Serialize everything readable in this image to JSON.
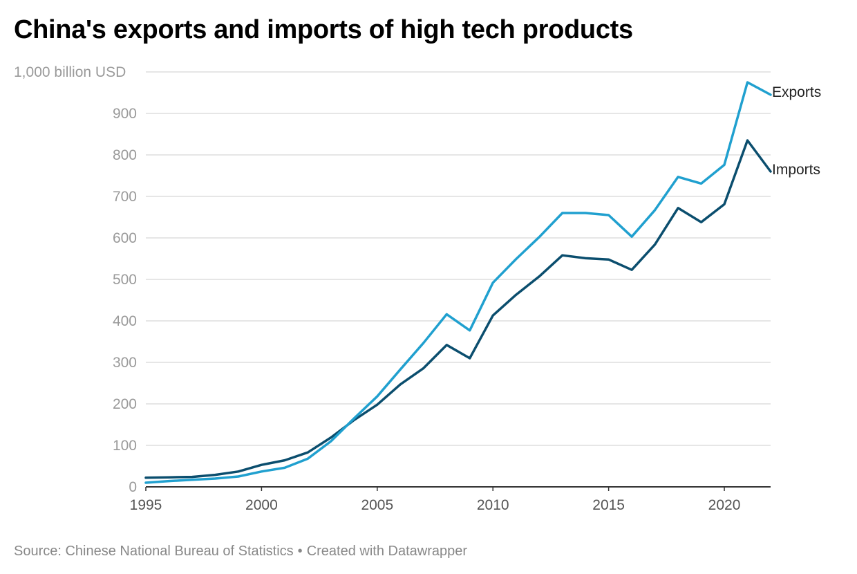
{
  "title": "China's exports and imports of high tech products",
  "footer": {
    "source": "Source: Chinese National Bureau of Statistics",
    "separator": "•",
    "credit": "Created with Datawrapper"
  },
  "chart_data": {
    "type": "line",
    "title": "China's exports and imports of high tech products",
    "ylabel": "1,000 billion USD",
    "ylim": [
      0,
      1000
    ],
    "xlim": [
      1995,
      2022
    ],
    "yticks": [
      {
        "value": 0,
        "label": "0"
      },
      {
        "value": 100,
        "label": "100"
      },
      {
        "value": 200,
        "label": "200"
      },
      {
        "value": 300,
        "label": "300"
      },
      {
        "value": 400,
        "label": "400"
      },
      {
        "value": 500,
        "label": "500"
      },
      {
        "value": 600,
        "label": "600"
      },
      {
        "value": 700,
        "label": "700"
      },
      {
        "value": 800,
        "label": "800"
      },
      {
        "value": 900,
        "label": "900"
      },
      {
        "value": 1000,
        "label": "1,000 billion USD"
      }
    ],
    "xticks": [
      {
        "value": 1995,
        "label": "1995"
      },
      {
        "value": 2000,
        "label": "2000"
      },
      {
        "value": 2005,
        "label": "2005"
      },
      {
        "value": 2010,
        "label": "2010"
      },
      {
        "value": 2015,
        "label": "2015"
      },
      {
        "value": 2020,
        "label": "2020"
      }
    ],
    "grid": true,
    "x": [
      1995,
      1996,
      1997,
      1998,
      1999,
      2000,
      2001,
      2002,
      2003,
      2004,
      2005,
      2006,
      2007,
      2008,
      2009,
      2010,
      2011,
      2012,
      2013,
      2014,
      2015,
      2016,
      2017,
      2018,
      2019,
      2020,
      2021,
      2022
    ],
    "series": [
      {
        "name": "Exports",
        "color": "#20a0cf",
        "values": [
          10,
          14,
          17,
          20,
          25,
          37,
          46,
          68,
          110,
          165,
          218,
          283,
          347,
          416,
          377,
          492,
          549,
          602,
          660,
          660,
          655,
          603,
          667,
          747,
          731,
          776,
          975,
          945
        ]
      },
      {
        "name": "Imports",
        "color": "#0b4e6e",
        "values": [
          22,
          23,
          24,
          29,
          37,
          53,
          64,
          83,
          119,
          161,
          198,
          247,
          286,
          342,
          310,
          413,
          463,
          507,
          558,
          551,
          548,
          523,
          584,
          672,
          638,
          681,
          835,
          760
        ]
      }
    ]
  }
}
